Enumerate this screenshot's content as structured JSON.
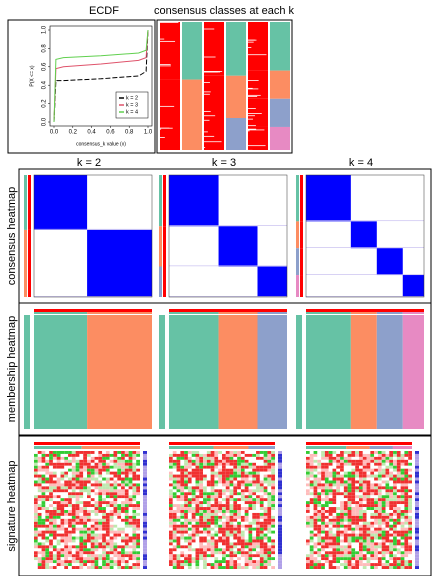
{
  "titles": {
    "ecdf": "ECDF",
    "classes": "consensus classes at each k"
  },
  "columns": [
    "k = 2",
    "k = 3",
    "k = 4"
  ],
  "rows": [
    "consensus heatmap",
    "membership heatmap",
    "signature heatmap"
  ],
  "chart_data": {
    "type": "line",
    "x_label": "consensus_k value (x)",
    "y_label": "P(X <= x)",
    "x": [
      0,
      0.02,
      0.1,
      0.5,
      0.9,
      0.98,
      1.0
    ],
    "series": [
      {
        "name": "k = 2",
        "color": "#000000",
        "values": [
          0,
          0.45,
          0.45,
          0.47,
          0.5,
          0.55,
          1
        ]
      },
      {
        "name": "k = 3",
        "color": "#DF536B",
        "values": [
          0,
          0.58,
          0.6,
          0.63,
          0.67,
          0.7,
          1
        ]
      },
      {
        "name": "k = 4",
        "color": "#61D04F",
        "values": [
          0,
          0.68,
          0.7,
          0.72,
          0.75,
          0.78,
          1
        ]
      }
    ],
    "xlim": [
      0,
      1
    ],
    "ylim": [
      0,
      1
    ],
    "xticks": [
      {
        "value": 0,
        "label": "0.0"
      },
      {
        "value": 0.2,
        "label": "0.2"
      },
      {
        "value": 0.4,
        "label": "0.4"
      },
      {
        "value": 0.6,
        "label": "0.6"
      },
      {
        "value": 0.8,
        "label": "0.8"
      },
      {
        "value": 1,
        "label": "1.0"
      }
    ],
    "yticks": [
      {
        "value": 0,
        "label": "0.0"
      },
      {
        "value": 0.2,
        "label": "0.2"
      },
      {
        "value": 0.4,
        "label": "0.4"
      },
      {
        "value": 0.6,
        "label": "0.6"
      },
      {
        "value": 0.8,
        "label": "0.8"
      },
      {
        "value": 1,
        "label": "1.0"
      }
    ],
    "legend": "bottom-right"
  }
}
